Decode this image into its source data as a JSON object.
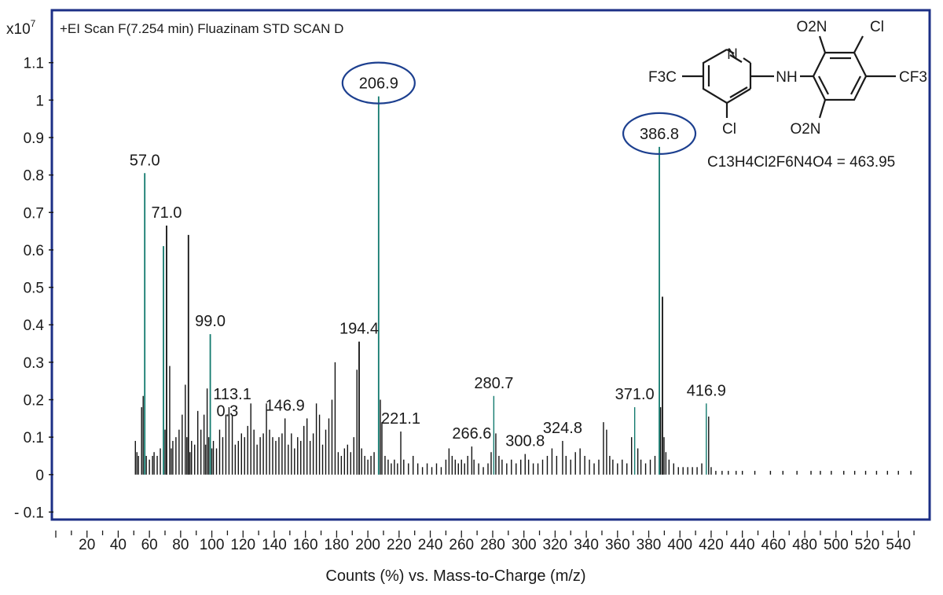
{
  "colors": {
    "frame": "#1c2f86",
    "spectrum": "#111111",
    "highlight_ring": "#1c3f8f",
    "teal_bars": "#127a6e"
  },
  "chart_data": {
    "type": "bar",
    "title": "+EI Scan F(7.254 min) Fluazinam STD SCAN D",
    "y_exponent_label": "x10",
    "y_exponent_power": "7",
    "xlabel": "Counts (%) vs. Mass-to-Charge (m/z)",
    "ylabel": "",
    "xlim": [
      0,
      556
    ],
    "ylim": [
      -0.12,
      1.24
    ],
    "grid": false,
    "y_ticks": [
      {
        "v": 1.1,
        "label": "1.1"
      },
      {
        "v": 1.0,
        "label": "1"
      },
      {
        "v": 0.9,
        "label": "0.9"
      },
      {
        "v": 0.8,
        "label": "0.8"
      },
      {
        "v": 0.7,
        "label": "0.7"
      },
      {
        "v": 0.6,
        "label": "0.6"
      },
      {
        "v": 0.5,
        "label": "0.5"
      },
      {
        "v": 0.4,
        "label": "0.4"
      },
      {
        "v": 0.3,
        "label": "0.3"
      },
      {
        "v": 0.2,
        "label": "0.2"
      },
      {
        "v": 0.1,
        "label": "0.1"
      },
      {
        "v": 0.0,
        "label": "0"
      },
      {
        "v": -0.1,
        "label": "- 0.1"
      }
    ],
    "x_ticks": [
      "20",
      "40",
      "60",
      "80",
      "100",
      "120",
      "140",
      "160",
      "180",
      "200",
      "220",
      "240",
      "260",
      "280",
      "300",
      "320",
      "340",
      "360",
      "380",
      "400",
      "420",
      "440",
      "460",
      "480",
      "500",
      "520",
      "540"
    ],
    "annotations": [
      {
        "x": 57.0,
        "y": 0.805,
        "label": "57.0",
        "circled": false
      },
      {
        "x": 71.0,
        "y": 0.665,
        "label": "71.0",
        "circled": false
      },
      {
        "x": 99.0,
        "y": 0.375,
        "label": "99.0",
        "circled": false
      },
      {
        "x": 113.1,
        "y": 0.18,
        "label": "113.1",
        "circled": false
      },
      {
        "x": 110.0,
        "y": 0.135,
        "label": "0.3",
        "circled": false
      },
      {
        "x": 146.9,
        "y": 0.15,
        "label": "146.9",
        "circled": false
      },
      {
        "x": 194.4,
        "y": 0.355,
        "label": "194.4",
        "circled": false
      },
      {
        "x": 206.9,
        "y": 1.01,
        "label": "206.9",
        "circled": true
      },
      {
        "x": 221.1,
        "y": 0.115,
        "label": "221.1",
        "circled": false
      },
      {
        "x": 266.6,
        "y": 0.075,
        "label": "266.6",
        "circled": false
      },
      {
        "x": 280.7,
        "y": 0.21,
        "label": "280.7",
        "circled": false
      },
      {
        "x": 300.8,
        "y": 0.055,
        "label": "300.8",
        "circled": false
      },
      {
        "x": 324.8,
        "y": 0.09,
        "label": "324.8",
        "circled": false
      },
      {
        "x": 371.0,
        "y": 0.18,
        "label": "371.0",
        "circled": false
      },
      {
        "x": 386.8,
        "y": 0.875,
        "label": "386.8",
        "circled": true
      },
      {
        "x": 416.9,
        "y": 0.19,
        "label": "416.9",
        "circled": false
      }
    ],
    "series": [
      {
        "peaks": [
          {
            "mz": 51,
            "v": 0.09
          },
          {
            "mz": 52,
            "v": 0.06
          },
          {
            "mz": 53,
            "v": 0.05
          },
          {
            "mz": 55,
            "v": 0.18
          },
          {
            "mz": 56,
            "v": 0.21
          },
          {
            "mz": 57.0,
            "v": 0.805
          },
          {
            "mz": 58,
            "v": 0.05
          },
          {
            "mz": 60,
            "v": 0.04
          },
          {
            "mz": 62,
            "v": 0.05
          },
          {
            "mz": 63,
            "v": 0.06
          },
          {
            "mz": 65,
            "v": 0.05
          },
          {
            "mz": 67,
            "v": 0.07
          },
          {
            "mz": 69,
            "v": 0.61
          },
          {
            "mz": 70,
            "v": 0.12
          },
          {
            "mz": 71.0,
            "v": 0.665
          },
          {
            "mz": 73,
            "v": 0.29
          },
          {
            "mz": 74,
            "v": 0.07
          },
          {
            "mz": 75,
            "v": 0.09
          },
          {
            "mz": 77,
            "v": 0.1
          },
          {
            "mz": 79,
            "v": 0.12
          },
          {
            "mz": 81,
            "v": 0.16
          },
          {
            "mz": 83,
            "v": 0.24
          },
          {
            "mz": 84,
            "v": 0.1
          },
          {
            "mz": 85,
            "v": 0.64
          },
          {
            "mz": 86,
            "v": 0.06
          },
          {
            "mz": 87,
            "v": 0.09
          },
          {
            "mz": 89,
            "v": 0.08
          },
          {
            "mz": 91,
            "v": 0.17
          },
          {
            "mz": 93,
            "v": 0.12
          },
          {
            "mz": 95,
            "v": 0.16
          },
          {
            "mz": 96,
            "v": 0.08
          },
          {
            "mz": 97,
            "v": 0.23
          },
          {
            "mz": 98,
            "v": 0.1
          },
          {
            "mz": 99.0,
            "v": 0.375
          },
          {
            "mz": 100,
            "v": 0.07
          },
          {
            "mz": 101,
            "v": 0.09
          },
          {
            "mz": 103,
            "v": 0.07
          },
          {
            "mz": 105,
            "v": 0.12
          },
          {
            "mz": 107,
            "v": 0.1
          },
          {
            "mz": 109,
            "v": 0.16
          },
          {
            "mz": 111,
            "v": 0.18
          },
          {
            "mz": 113.1,
            "v": 0.16
          },
          {
            "mz": 115,
            "v": 0.08
          },
          {
            "mz": 117,
            "v": 0.09
          },
          {
            "mz": 119,
            "v": 0.11
          },
          {
            "mz": 121,
            "v": 0.1
          },
          {
            "mz": 123,
            "v": 0.13
          },
          {
            "mz": 125,
            "v": 0.19
          },
          {
            "mz": 127,
            "v": 0.12
          },
          {
            "mz": 129,
            "v": 0.08
          },
          {
            "mz": 131,
            "v": 0.1
          },
          {
            "mz": 133,
            "v": 0.11
          },
          {
            "mz": 135,
            "v": 0.19
          },
          {
            "mz": 137,
            "v": 0.12
          },
          {
            "mz": 139,
            "v": 0.1
          },
          {
            "mz": 141,
            "v": 0.09
          },
          {
            "mz": 143,
            "v": 0.1
          },
          {
            "mz": 145,
            "v": 0.11
          },
          {
            "mz": 146.9,
            "v": 0.15
          },
          {
            "mz": 149,
            "v": 0.08
          },
          {
            "mz": 151,
            "v": 0.11
          },
          {
            "mz": 153,
            "v": 0.07
          },
          {
            "mz": 155,
            "v": 0.1
          },
          {
            "mz": 157,
            "v": 0.09
          },
          {
            "mz": 159,
            "v": 0.13
          },
          {
            "mz": 161,
            "v": 0.15
          },
          {
            "mz": 163,
            "v": 0.09
          },
          {
            "mz": 165,
            "v": 0.11
          },
          {
            "mz": 167,
            "v": 0.19
          },
          {
            "mz": 169,
            "v": 0.16
          },
          {
            "mz": 171,
            "v": 0.08
          },
          {
            "mz": 173,
            "v": 0.12
          },
          {
            "mz": 175,
            "v": 0.15
          },
          {
            "mz": 177,
            "v": 0.2
          },
          {
            "mz": 179,
            "v": 0.3
          },
          {
            "mz": 181,
            "v": 0.06
          },
          {
            "mz": 183,
            "v": 0.05
          },
          {
            "mz": 185,
            "v": 0.07
          },
          {
            "mz": 187,
            "v": 0.08
          },
          {
            "mz": 189,
            "v": 0.06
          },
          {
            "mz": 191,
            "v": 0.1
          },
          {
            "mz": 193,
            "v": 0.28
          },
          {
            "mz": 194.4,
            "v": 0.355
          },
          {
            "mz": 196,
            "v": 0.07
          },
          {
            "mz": 198,
            "v": 0.05
          },
          {
            "mz": 200,
            "v": 0.04
          },
          {
            "mz": 202,
            "v": 0.05
          },
          {
            "mz": 204,
            "v": 0.06
          },
          {
            "mz": 206.9,
            "v": 1.01
          },
          {
            "mz": 208,
            "v": 0.2
          },
          {
            "mz": 209,
            "v": 0.14
          },
          {
            "mz": 211,
            "v": 0.05
          },
          {
            "mz": 213,
            "v": 0.04
          },
          {
            "mz": 215,
            "v": 0.03
          },
          {
            "mz": 217,
            "v": 0.04
          },
          {
            "mz": 219,
            "v": 0.03
          },
          {
            "mz": 221.1,
            "v": 0.115
          },
          {
            "mz": 223,
            "v": 0.04
          },
          {
            "mz": 226,
            "v": 0.03
          },
          {
            "mz": 229,
            "v": 0.05
          },
          {
            "mz": 232,
            "v": 0.03
          },
          {
            "mz": 235,
            "v": 0.02
          },
          {
            "mz": 238,
            "v": 0.03
          },
          {
            "mz": 241,
            "v": 0.02
          },
          {
            "mz": 244,
            "v": 0.03
          },
          {
            "mz": 247,
            "v": 0.02
          },
          {
            "mz": 250,
            "v": 0.04
          },
          {
            "mz": 252,
            "v": 0.07
          },
          {
            "mz": 254,
            "v": 0.05
          },
          {
            "mz": 256,
            "v": 0.04
          },
          {
            "mz": 258,
            "v": 0.03
          },
          {
            "mz": 260,
            "v": 0.04
          },
          {
            "mz": 262,
            "v": 0.03
          },
          {
            "mz": 264,
            "v": 0.05
          },
          {
            "mz": 266.6,
            "v": 0.075
          },
          {
            "mz": 268,
            "v": 0.04
          },
          {
            "mz": 271,
            "v": 0.03
          },
          {
            "mz": 274,
            "v": 0.02
          },
          {
            "mz": 277,
            "v": 0.03
          },
          {
            "mz": 279,
            "v": 0.06
          },
          {
            "mz": 280.7,
            "v": 0.21
          },
          {
            "mz": 282,
            "v": 0.11
          },
          {
            "mz": 284,
            "v": 0.05
          },
          {
            "mz": 286,
            "v": 0.04
          },
          {
            "mz": 289,
            "v": 0.03
          },
          {
            "mz": 292,
            "v": 0.04
          },
          {
            "mz": 295,
            "v": 0.03
          },
          {
            "mz": 298,
            "v": 0.04
          },
          {
            "mz": 300.8,
            "v": 0.055
          },
          {
            "mz": 303,
            "v": 0.04
          },
          {
            "mz": 306,
            "v": 0.03
          },
          {
            "mz": 309,
            "v": 0.03
          },
          {
            "mz": 312,
            "v": 0.04
          },
          {
            "mz": 315,
            "v": 0.05
          },
          {
            "mz": 318,
            "v": 0.07
          },
          {
            "mz": 321,
            "v": 0.05
          },
          {
            "mz": 324.8,
            "v": 0.09
          },
          {
            "mz": 327,
            "v": 0.05
          },
          {
            "mz": 330,
            "v": 0.04
          },
          {
            "mz": 333,
            "v": 0.06
          },
          {
            "mz": 336,
            "v": 0.07
          },
          {
            "mz": 339,
            "v": 0.05
          },
          {
            "mz": 342,
            "v": 0.04
          },
          {
            "mz": 345,
            "v": 0.03
          },
          {
            "mz": 348,
            "v": 0.04
          },
          {
            "mz": 351,
            "v": 0.14
          },
          {
            "mz": 353,
            "v": 0.12
          },
          {
            "mz": 355,
            "v": 0.05
          },
          {
            "mz": 357,
            "v": 0.04
          },
          {
            "mz": 360,
            "v": 0.03
          },
          {
            "mz": 363,
            "v": 0.04
          },
          {
            "mz": 366,
            "v": 0.03
          },
          {
            "mz": 369,
            "v": 0.1
          },
          {
            "mz": 371.0,
            "v": 0.18
          },
          {
            "mz": 373,
            "v": 0.07
          },
          {
            "mz": 375,
            "v": 0.04
          },
          {
            "mz": 378,
            "v": 0.03
          },
          {
            "mz": 381,
            "v": 0.04
          },
          {
            "mz": 384,
            "v": 0.05
          },
          {
            "mz": 386.8,
            "v": 0.875
          },
          {
            "mz": 387.6,
            "v": 0.18
          },
          {
            "mz": 388.8,
            "v": 0.475
          },
          {
            "mz": 389.8,
            "v": 0.1
          },
          {
            "mz": 391,
            "v": 0.06
          },
          {
            "mz": 393,
            "v": 0.04
          },
          {
            "mz": 396,
            "v": 0.03
          },
          {
            "mz": 399,
            "v": 0.02
          },
          {
            "mz": 402,
            "v": 0.02
          },
          {
            "mz": 405,
            "v": 0.02
          },
          {
            "mz": 408,
            "v": 0.02
          },
          {
            "mz": 411,
            "v": 0.02
          },
          {
            "mz": 414,
            "v": 0.03
          },
          {
            "mz": 416.9,
            "v": 0.19
          },
          {
            "mz": 418.4,
            "v": 0.155
          },
          {
            "mz": 420,
            "v": 0.02
          },
          {
            "mz": 423,
            "v": 0.01
          },
          {
            "mz": 427,
            "v": 0.01
          },
          {
            "mz": 431,
            "v": 0.01
          },
          {
            "mz": 436,
            "v": 0.01
          },
          {
            "mz": 440,
            "v": 0.01
          },
          {
            "mz": 448,
            "v": 0.01
          },
          {
            "mz": 458,
            "v": 0.01
          },
          {
            "mz": 466,
            "v": 0.01
          },
          {
            "mz": 475,
            "v": 0.01
          },
          {
            "mz": 484,
            "v": 0.01
          },
          {
            "mz": 490,
            "v": 0.01
          },
          {
            "mz": 497,
            "v": 0.01
          },
          {
            "mz": 505,
            "v": 0.01
          },
          {
            "mz": 512,
            "v": 0.01
          },
          {
            "mz": 519,
            "v": 0.01
          },
          {
            "mz": 526,
            "v": 0.01
          },
          {
            "mz": 533,
            "v": 0.01
          },
          {
            "mz": 540,
            "v": 0.01
          },
          {
            "mz": 548,
            "v": 0.01
          }
        ]
      }
    ]
  },
  "structure": {
    "atoms": {
      "n_pyridine": "N",
      "nh": "NH",
      "cl_top": "Cl",
      "cl_bottom": "Cl",
      "cf3_left": "F3C",
      "cf3_right": "CF3",
      "no2_top": "O2N",
      "no2_bottom": "O2N"
    },
    "formula": "C13H4Cl2F6N4O4 = 463.95"
  }
}
